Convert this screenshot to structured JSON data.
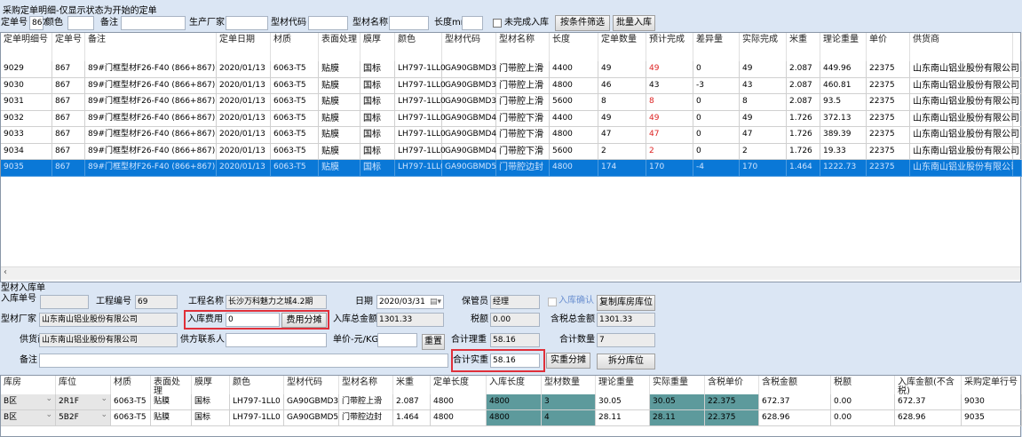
{
  "title": "采购定单明细-仅显示状态为开始的定单",
  "filter": {
    "order_no_label": "定单号",
    "order_no": "867",
    "color_label": "颜色",
    "color": "",
    "remark_label": "备注",
    "remark": "",
    "maker_label": "生产厂家",
    "maker": "",
    "code_label": "型材代码",
    "code": "",
    "name_label": "型材名称",
    "name": "",
    "length_label": "长度mm",
    "length": "",
    "unfinished_label": "未完成入库",
    "unfinished_checked": false,
    "filter_button": "按条件筛选",
    "batch_button": "批量入库"
  },
  "top_grid": {
    "columns": [
      "定单明细号",
      "定单号",
      "备注",
      "定单日期",
      "材质",
      "表面处理",
      "膜厚",
      "颜色",
      "型材代码",
      "型材名称",
      "长度",
      "定单数量",
      "预计完成",
      "差异量",
      "实际完成",
      "米重",
      "理论重量",
      "单价",
      "供货商",
      ""
    ],
    "rows": [
      [
        "9029",
        "867",
        "89#门框型材F26-F40 (866+867)",
        "2020/01/13",
        "6063-T5",
        "贴膜",
        "国标",
        "LH797-1LL0",
        "GA90GBMD3",
        "门带腔上滑",
        "4400",
        "49",
        "49",
        "0",
        "49",
        "2.087",
        "449.96",
        "22375",
        "山东南山铝业股份有限公司",
        ""
      ],
      [
        "9030",
        "867",
        "89#门框型材F26-F40 (866+867)",
        "2020/01/13",
        "6063-T5",
        "贴膜",
        "国标",
        "LH797-1LL0",
        "GA90GBMD3",
        "门带腔上滑",
        "4800",
        "46",
        "43",
        "-3",
        "43",
        "2.087",
        "460.81",
        "22375",
        "山东南山铝业股份有限公司",
        ""
      ],
      [
        "9031",
        "867",
        "89#门框型材F26-F40 (866+867)",
        "2020/01/13",
        "6063-T5",
        "贴膜",
        "国标",
        "LH797-1LL0",
        "GA90GBMD3",
        "门带腔上滑",
        "5600",
        "8",
        "8",
        "0",
        "8",
        "2.087",
        "93.5",
        "22375",
        "山东南山铝业股份有限公司",
        ""
      ],
      [
        "9032",
        "867",
        "89#门框型材F26-F40 (866+867)",
        "2020/01/13",
        "6063-T5",
        "贴膜",
        "国标",
        "LH797-1LL0",
        "GA90GBMD4",
        "门带腔下滑",
        "4400",
        "49",
        "49",
        "0",
        "49",
        "1.726",
        "372.13",
        "22375",
        "山东南山铝业股份有限公司",
        ""
      ],
      [
        "9033",
        "867",
        "89#门框型材F26-F40 (866+867)",
        "2020/01/13",
        "6063-T5",
        "贴膜",
        "国标",
        "LH797-1LL0",
        "GA90GBMD4",
        "门带腔下滑",
        "4800",
        "47",
        "47",
        "0",
        "47",
        "1.726",
        "389.39",
        "22375",
        "山东南山铝业股份有限公司",
        ""
      ],
      [
        "9034",
        "867",
        "89#门框型材F26-F40 (866+867)",
        "2020/01/13",
        "6063-T5",
        "贴膜",
        "国标",
        "LH797-1LL0",
        "GA90GBMD4",
        "门带腔下滑",
        "5600",
        "2",
        "2",
        "0",
        "2",
        "1.726",
        "19.33",
        "22375",
        "山东南山铝业股份有限公司",
        ""
      ],
      [
        "9035",
        "867",
        "89#门框型材F26-F40 (866+867)",
        "2020/01/13",
        "6063-T5",
        "贴膜",
        "国标",
        "LH797-1LL0",
        "GA90GBMD5",
        "门带腔边封",
        "4800",
        "174",
        "170",
        "-4",
        "170",
        "1.464",
        "1222.73",
        "22375",
        "山东南山铝业股份有限公司",
        ""
      ]
    ],
    "selected_row": 6,
    "red_column_rows": [
      0,
      2,
      3,
      4,
      5
    ]
  },
  "form": {
    "section_title": "型材入库单",
    "receipt_no_label": "入库单号",
    "receipt_no": "",
    "project_no_label": "工程编号",
    "project_no": "69",
    "project_name_label": "工程名称",
    "project_name": "长沙万科魅力之城4.2期",
    "date_label": "日期",
    "date": "2020/03/31",
    "keeper_label": "保管员",
    "keeper": "经理",
    "confirm_label": "入库确认",
    "confirm_checked": false,
    "copy_location_button": "复制库房库位",
    "maker_label": "型材厂家",
    "maker": "山东南山铝业股份有限公司",
    "fee_label": "入库费用",
    "fee": "0",
    "fee_split_button": "费用分摊",
    "total_amount_label": "入库总金额",
    "total_amount": "1301.33",
    "tax_label": "税额",
    "tax": "0.00",
    "total_with_tax_label": "含税总金额",
    "total_with_tax": "1301.33",
    "supplier_label": "供货商",
    "supplier": "山东南山铝业股份有限公司",
    "contact_label": "供方联系人",
    "contact": "",
    "unit_price_label": "单价-元/KG",
    "unit_price": "",
    "reset_button": "重置",
    "theory_weight_label": "合计理重",
    "theory_weight": "58.16",
    "total_qty_label": "合计数量",
    "total_qty": "7",
    "remark_label": "备注",
    "remark": "",
    "actual_weight_label": "合计实重",
    "actual_weight": "58.16",
    "weight_split_button": "实重分摊",
    "split_location_button": "拆分库位"
  },
  "bottom_grid": {
    "columns": [
      "库房",
      "库位",
      "材质",
      "表面处理",
      "膜厚",
      "颜色",
      "型材代码",
      "型材名称",
      "米重",
      "定单长度",
      "入库长度",
      "型材数量",
      "理论重量",
      "实际重量",
      "含税单价",
      "含税金额",
      "税额",
      "入库金额(不含税)",
      "采购定单行号"
    ],
    "rows": [
      [
        "B区",
        "2R1F",
        "6063-T5",
        "贴膜",
        "国标",
        "LH797-1LL0",
        "GA90GBMD3",
        "门带腔上滑",
        "2.087",
        "4800",
        "4800",
        "3",
        "30.05",
        "30.05",
        "22.375",
        "672.37",
        "0.00",
        "672.37",
        "9030"
      ],
      [
        "B区",
        "5B2F",
        "6063-T5",
        "贴膜",
        "国标",
        "LH797-1LL0",
        "GA90GBMD5",
        "门带腔边封",
        "1.464",
        "4800",
        "4800",
        "4",
        "28.11",
        "28.11",
        "22.375",
        "628.96",
        "0.00",
        "628.96",
        "9035"
      ]
    ]
  },
  "colors": {
    "selected": "#0a78d7",
    "editable_cell": "#5d9a9c",
    "highlight_box": "#e0303a",
    "warning_text": "#d22222"
  }
}
